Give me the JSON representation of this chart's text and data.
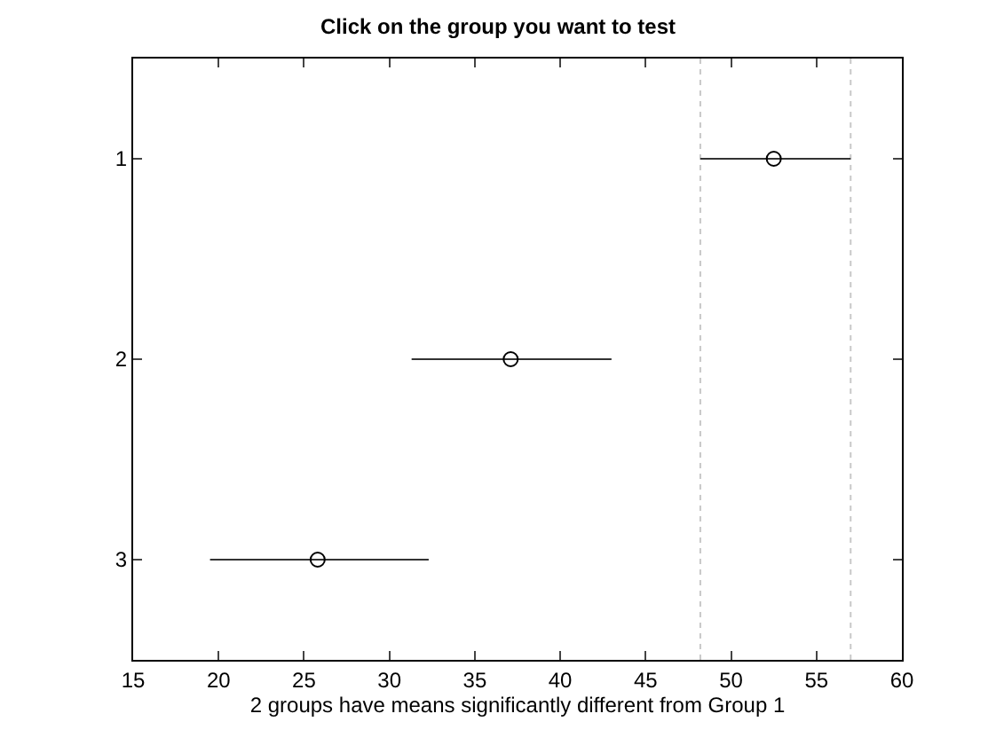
{
  "chart_data": {
    "type": "scatter",
    "orientation": "horizontal",
    "title": "Click on the group you want to test",
    "xlabel": "2 groups have means significantly different from Group 1",
    "categories": [
      "1",
      "2",
      "3"
    ],
    "values": [
      52.5,
      37.1,
      25.8
    ],
    "errors": [
      [
        48.2,
        57.0
      ],
      [
        31.3,
        43.0
      ],
      [
        19.5,
        32.3
      ]
    ],
    "color": "#000000",
    "marker": "circle",
    "xlim": [
      15,
      60
    ],
    "xticks": [
      15,
      20,
      25,
      30,
      35,
      40,
      45,
      50,
      55,
      60
    ],
    "ref_lines": [
      {
        "axis": "x",
        "value": 48.2,
        "color": "#c8c8c8",
        "line_style": "dotted"
      },
      {
        "axis": "x",
        "value": 57.0,
        "color": "#c8c8c8",
        "line_style": "dotted"
      }
    ],
    "grid": false,
    "legend": false
  }
}
